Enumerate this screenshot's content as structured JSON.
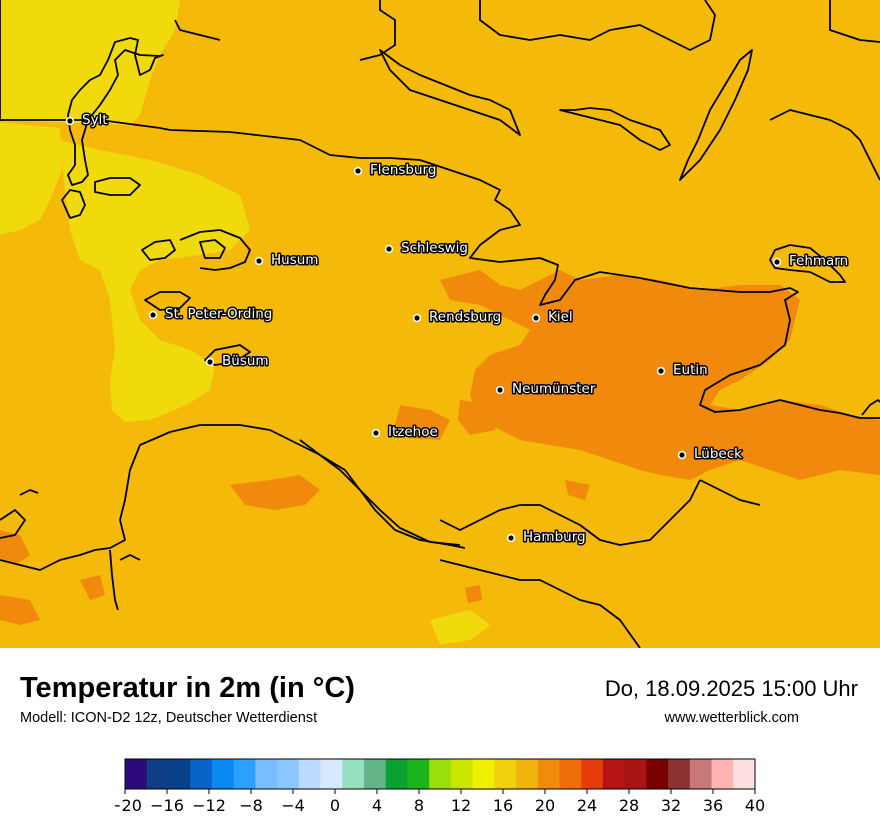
{
  "title": "Temperatur in 2m (in °C)",
  "subtitle": "Modell: ICON-D2 12z, Deutscher Wetterdienst",
  "datetime": "Do, 18.09.2025 15:00 Uhr",
  "website": "www.wetterblick.com",
  "cities": [
    {
      "name": "Sylt"
    },
    {
      "name": "Flensburg"
    },
    {
      "name": "Schleswig"
    },
    {
      "name": "Husum"
    },
    {
      "name": "Fehmarn"
    },
    {
      "name": "St. Peter-Ording"
    },
    {
      "name": "Rendsburg"
    },
    {
      "name": "Kiel"
    },
    {
      "name": "Büsum"
    },
    {
      "name": "Eutin"
    },
    {
      "name": "Neumünster"
    },
    {
      "name": "Itzehoe"
    },
    {
      "name": "Lübeck"
    },
    {
      "name": "Hamburg"
    }
  ],
  "legend": {
    "ticks": [
      "−20",
      "−16",
      "−12",
      "−8",
      "−4",
      "0",
      "4",
      "8",
      "12",
      "16",
      "20",
      "24",
      "28",
      "32",
      "36",
      "40"
    ],
    "colors": [
      "#2c0a7c",
      "#0e3e86",
      "#07418a",
      "#0a64c8",
      "#0a8af0",
      "#2aa0ff",
      "#78bdff",
      "#8cc6ff",
      "#bcdcff",
      "#d8e8ff",
      "#96e0c0",
      "#64b48a",
      "#0aa032",
      "#1eb41e",
      "#9ade0a",
      "#cce600",
      "#f0f000",
      "#f0d00a",
      "#f0b40a",
      "#f08c0a",
      "#f06e0a",
      "#e63c0a",
      "#b41414",
      "#aa1414",
      "#780000",
      "#8c3232",
      "#c87878",
      "#ffb4b4",
      "#ffe0e0"
    ]
  },
  "colors": {
    "land_base": "#f5b90a",
    "cool_zone": "#f1da0c",
    "warm_zone": "#f0890c",
    "coastline": "#000000"
  }
}
